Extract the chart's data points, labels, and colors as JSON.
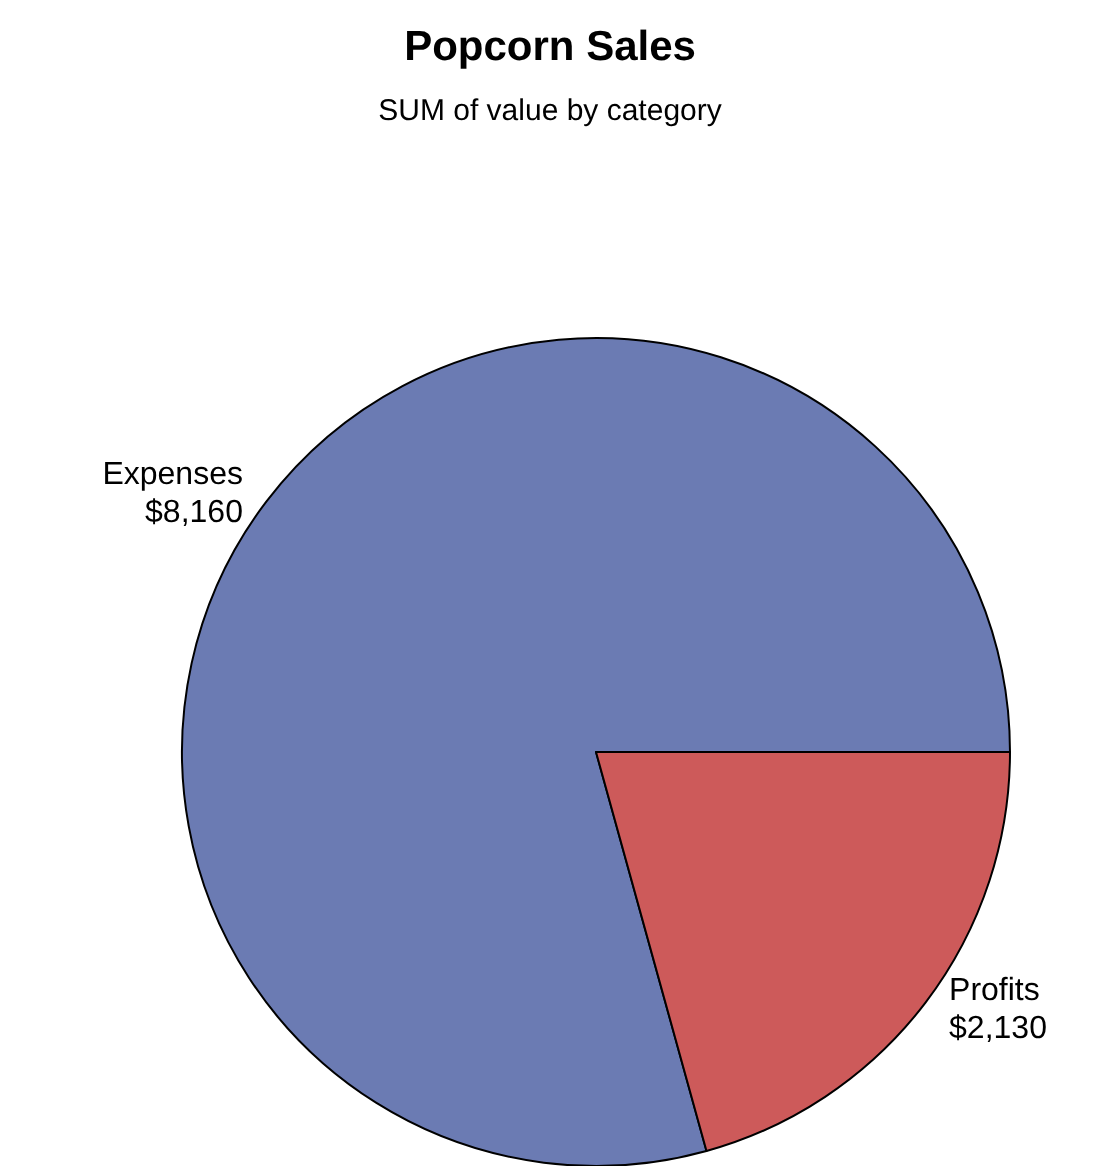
{
  "chart_data": {
    "type": "pie",
    "title": "Popcorn Sales",
    "subtitle": "SUM of value by category",
    "categories": [
      "Expenses",
      "Profits"
    ],
    "values": [
      8160,
      2130
    ],
    "colors": [
      "#6b7bb3",
      "#cd5a5a"
    ],
    "value_labels": [
      "$8,160",
      "$2,130"
    ],
    "legend": false
  }
}
